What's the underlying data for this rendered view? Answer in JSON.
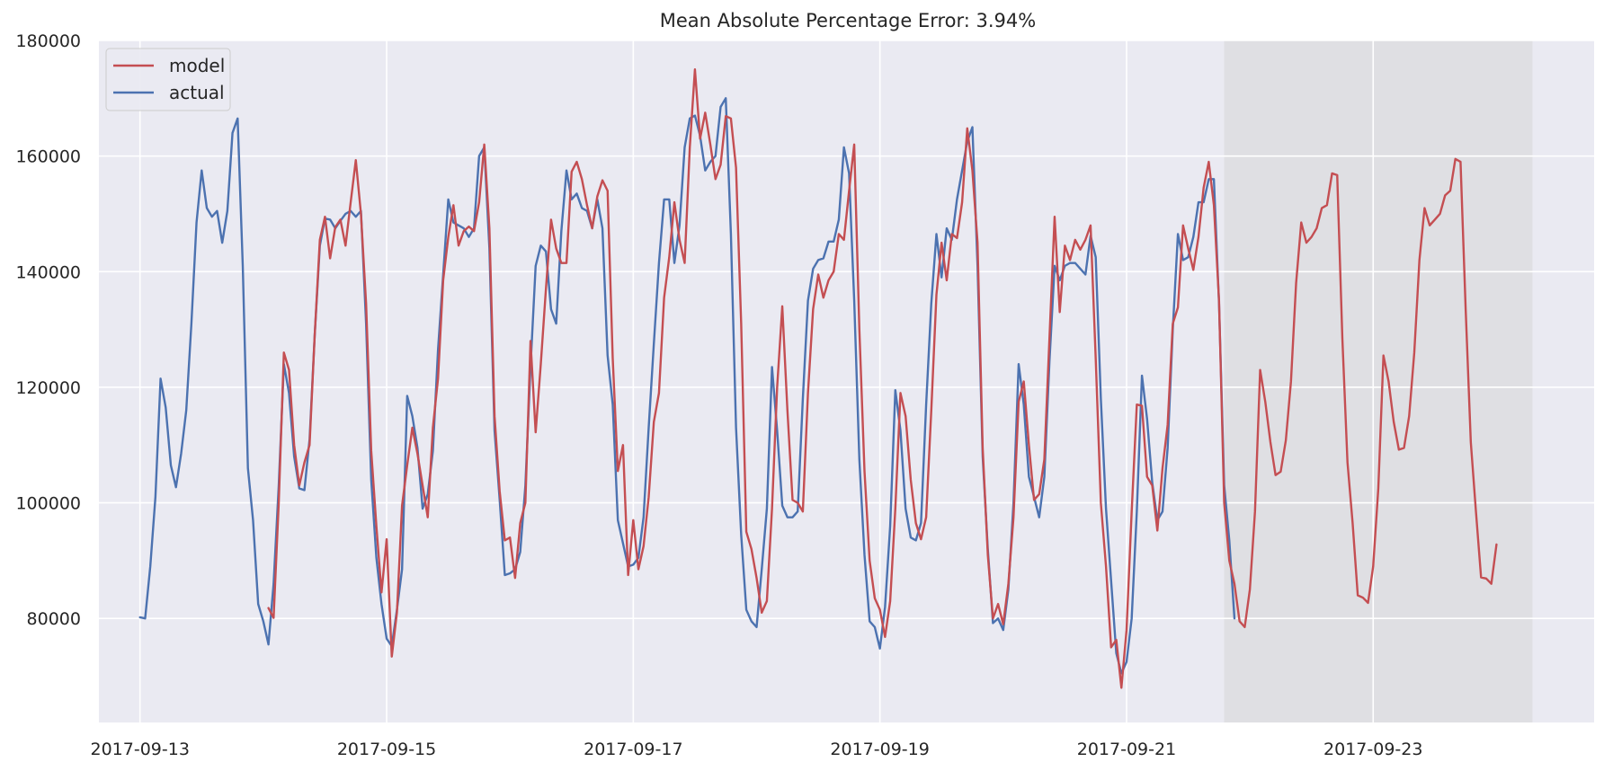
{
  "chart_data": {
    "type": "line",
    "title": "Mean Absolute Percentage Error: 3.94%",
    "xlabel": "",
    "ylabel": "",
    "ylim": [
      62000,
      180000
    ],
    "y_ticks": [
      80000,
      100000,
      120000,
      140000,
      160000,
      180000
    ],
    "y_tick_labels": [
      "80000",
      "100000",
      "120000",
      "140000",
      "160000",
      "180000"
    ],
    "x_range_hours": [
      -8,
      283
    ],
    "x_ticks": [
      "2017-09-13",
      "2017-09-15",
      "2017-09-17",
      "2017-09-19",
      "2017-09-21",
      "2017-09-23"
    ],
    "x_tick_labels": [
      "2017-09-13",
      "2017-09-15",
      "2017-09-17",
      "2017-09-19",
      "2017-09-21",
      "2017-09-23"
    ],
    "x_unit": "hours from 2017-09-13 00:00",
    "shaded_region": {
      "start": "2017-09-21 19:00",
      "end": "2017-09-24 07:00",
      "color": "#d3d3d3"
    },
    "grid": true,
    "legend": {
      "position": "top-left",
      "entries": [
        "model",
        "actual"
      ]
    },
    "colors": {
      "model": "#c44e52",
      "actual": "#4c72b0",
      "background": "#eaeaf2",
      "grid": "#ffffff"
    },
    "series": [
      {
        "name": "actual",
        "color": "#4c72b0",
        "start": "2017-09-13 00:00",
        "step_hours": 1,
        "values": [
          80200,
          80000,
          89000,
          101000,
          121500,
          116500,
          106500,
          102700,
          108500,
          116000,
          131000,
          148500,
          157500,
          151000,
          149500,
          150500,
          145000,
          150500,
          164000,
          166500,
          141000,
          106000,
          97000,
          82500,
          79500,
          75500,
          86000,
          103000,
          124000,
          119000,
          108000,
          102500,
          102200,
          111000,
          129000,
          144500,
          149200,
          149000,
          147500,
          148800,
          150000,
          150500,
          149500,
          150500,
          131000,
          104000,
          90500,
          82500,
          76500,
          75200,
          81500,
          88500,
          118500,
          115000,
          109500,
          99000,
          101500,
          109000,
          126500,
          139500,
          152500,
          148500,
          148000,
          147500,
          146000,
          147500,
          160000,
          161500,
          144000,
          112500,
          100500,
          87500,
          87800,
          88500,
          91500,
          103000,
          123500,
          141000,
          144500,
          143500,
          133500,
          131000,
          147000,
          157500,
          152500,
          153500,
          151000,
          150500,
          147500,
          152500,
          147500,
          125500,
          117000,
          97000,
          93000,
          89000,
          89300,
          90500,
          97500,
          113000,
          127500,
          141500,
          152500,
          152500,
          141500,
          148000,
          161500,
          166500,
          167000,
          163500,
          157500,
          159000,
          160000,
          168500,
          170000,
          146500,
          113000,
          94500,
          81500,
          79500,
          78500,
          88500,
          99000,
          123500,
          112500,
          99500,
          97500,
          97500,
          98500,
          118000,
          135000,
          140500,
          142000,
          142300,
          145200,
          145200,
          149000,
          161500,
          157000,
          135000,
          107500,
          91000,
          79500,
          78500,
          74800,
          82000,
          96000,
          119500,
          112500,
          99000,
          94000,
          93500,
          96500,
          117000,
          134500,
          146500,
          139000,
          147500,
          145500,
          152500,
          157500,
          162500,
          165000,
          141000,
          108000,
          92000,
          79200,
          80000,
          78000,
          85000,
          100000,
          124000,
          117000,
          104500,
          101000,
          97500,
          104500,
          124500,
          141000,
          138500,
          141000,
          141500,
          141500,
          140500,
          139500,
          146200,
          142500,
          118000,
          99000,
          86500,
          74000,
          70500,
          72500,
          80000,
          98500,
          122000,
          114500,
          103500,
          97000,
          98500,
          109500,
          130000,
          146500,
          142000,
          142500,
          146000,
          152000,
          152000,
          156000,
          156000,
          134500,
          103000,
          93500,
          80000
        ]
      },
      {
        "name": "model",
        "color": "#c44e52",
        "start": "2017-09-14 01:00",
        "step_hours": 1,
        "values": [
          81800,
          80100,
          100000,
          126000,
          123000,
          110000,
          103000,
          107000,
          110000,
          129000,
          145500,
          149500,
          142300,
          147700,
          149000,
          144500,
          152000,
          159300,
          150000,
          134500,
          109000,
          96000,
          84500,
          93700,
          73400,
          81000,
          99500,
          106500,
          113000,
          108500,
          103000,
          97500,
          113000,
          121500,
          138500,
          146000,
          151500,
          144500,
          147000,
          147800,
          147000,
          152000,
          162000,
          147500,
          115000,
          102000,
          93500,
          94000,
          87000,
          96500,
          100000,
          128000,
          112200,
          124000,
          137000,
          149000,
          144000,
          141500,
          141500,
          157300,
          159000,
          156000,
          151500,
          147500,
          153000,
          155800,
          154000,
          125000,
          105500,
          110000,
          87500,
          97000,
          88500,
          92500,
          101000,
          114000,
          119000,
          135500,
          142500,
          152000,
          145500,
          141500,
          161500,
          175000,
          163000,
          167500,
          162000,
          156000,
          158500,
          166900,
          166500,
          158000,
          131000,
          95000,
          92000,
          87000,
          81000,
          83000,
          99000,
          120000,
          134000,
          116000,
          100500,
          100000,
          98500,
          119000,
          133500,
          139500,
          135500,
          138500,
          140000,
          146500,
          145500,
          154000,
          162000,
          130000,
          105500,
          90000,
          83500,
          81500,
          76800,
          83000,
          99000,
          119000,
          115000,
          104000,
          96500,
          93700,
          97500,
          116000,
          136000,
          145000,
          138500,
          146500,
          145800,
          152000,
          164800,
          157500,
          145000,
          109500,
          91000,
          80000,
          82500,
          79000,
          86000,
          97500,
          117500,
          121000,
          110000,
          100500,
          101500,
          107500,
          128500,
          149500,
          133000,
          144500,
          142000,
          145500,
          143800,
          145500,
          148000,
          125000,
          100000,
          89000,
          75000,
          76300,
          68000,
          78000,
          98500,
          117000,
          116800,
          104500,
          103000,
          95200,
          106000,
          113500,
          131000,
          133800,
          148000,
          144000,
          140300,
          146000,
          154500,
          159000,
          151500,
          135000,
          100000,
          90000,
          86000,
          79500,
          78500,
          85000,
          98500,
          123000,
          117500,
          110500,
          104800,
          105400,
          110800,
          121000,
          138000,
          148500,
          145000,
          146000,
          147500,
          151000,
          151500,
          157000,
          156700,
          128500,
          107000,
          96500,
          84000,
          83600,
          82700,
          89000,
          102500,
          125500,
          121000,
          114000,
          109200,
          109500,
          115000,
          126000,
          142000,
          151000,
          148000,
          149000,
          150000,
          153200,
          154000,
          159500,
          159000,
          133500,
          110500,
          98500,
          87100,
          86900,
          86000,
          92800
        ]
      }
    ]
  }
}
